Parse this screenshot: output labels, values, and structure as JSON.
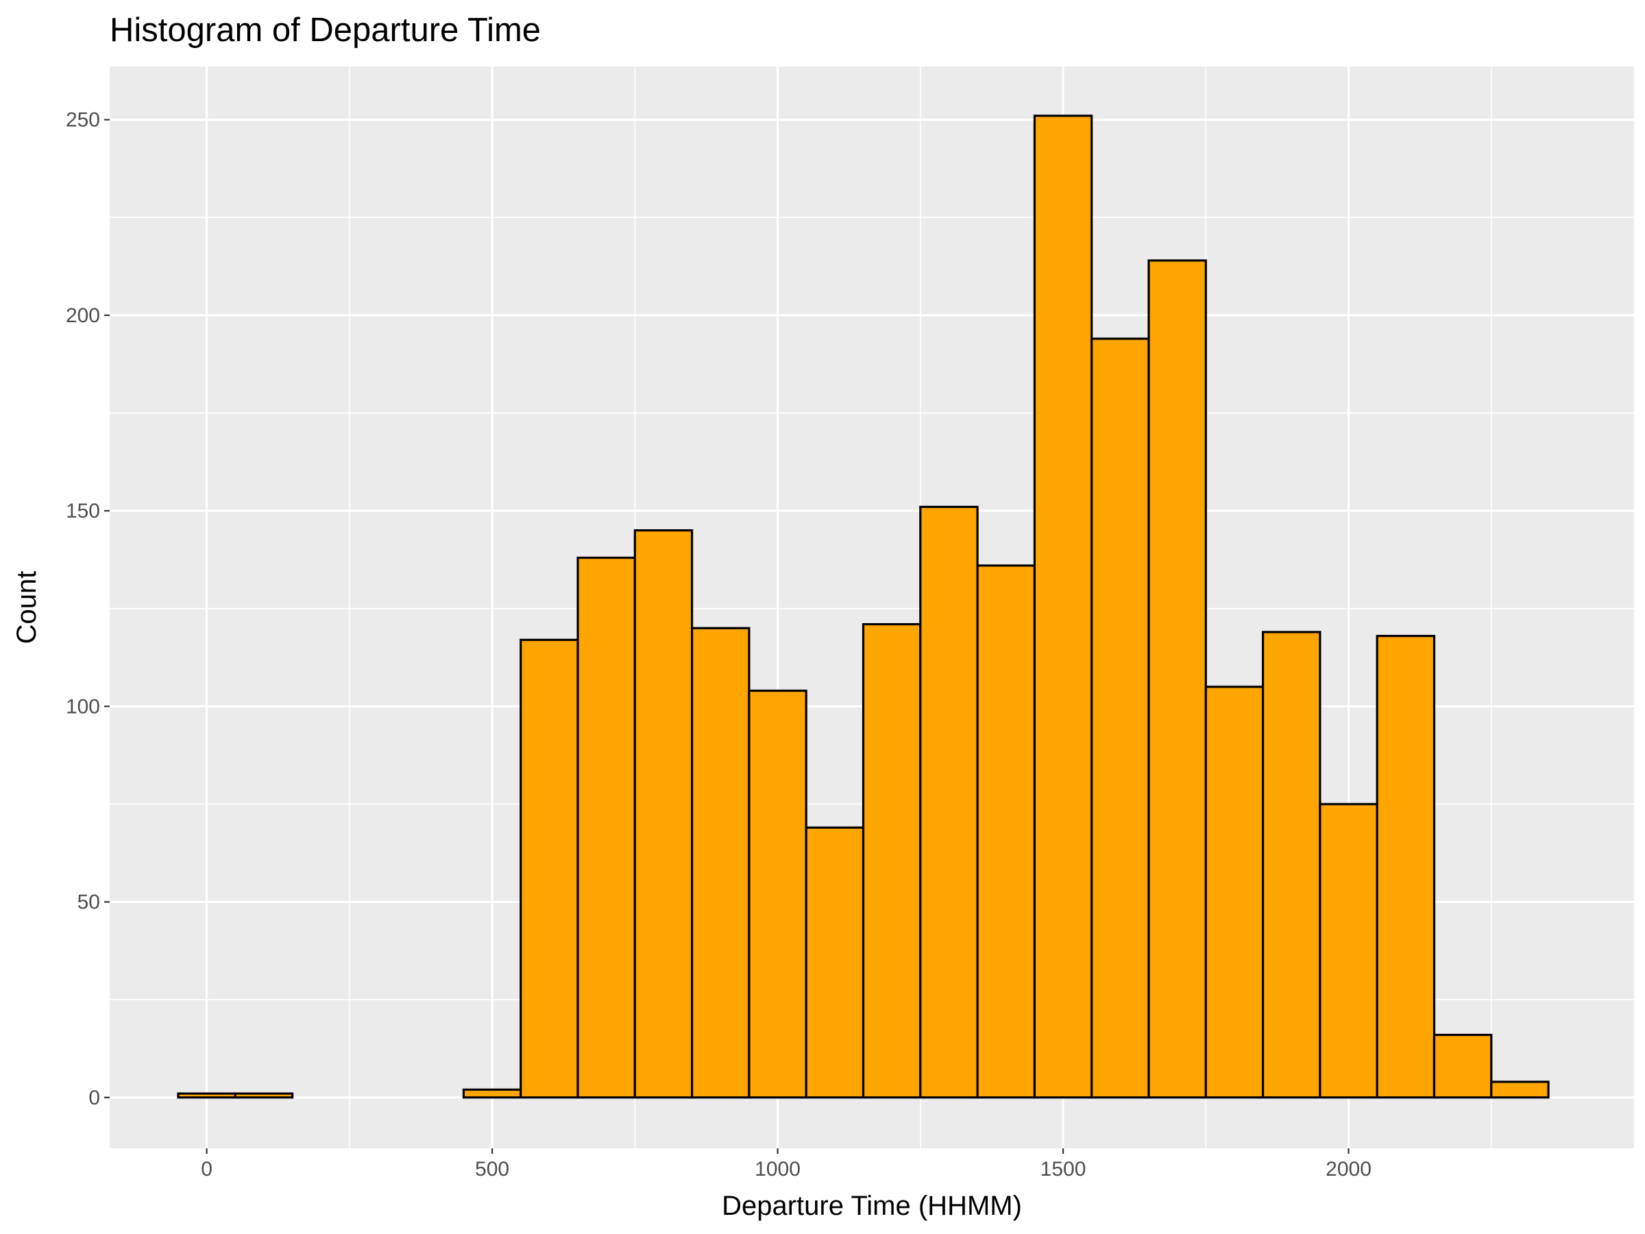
{
  "chart_data": {
    "type": "bar",
    "title": "Histogram of Departure Time",
    "xlabel": "Departure Time (HHMM)",
    "ylabel": "Count",
    "bin_width": 100,
    "x": [
      0,
      100,
      200,
      300,
      400,
      500,
      600,
      700,
      800,
      900,
      1000,
      1100,
      1200,
      1300,
      1400,
      1500,
      1600,
      1700,
      1800,
      1900,
      2000,
      2100,
      2200,
      2300
    ],
    "values": [
      1,
      1,
      0,
      0,
      0,
      2,
      117,
      138,
      145,
      120,
      104,
      69,
      121,
      151,
      136,
      251,
      194,
      214,
      105,
      119,
      75,
      118,
      16,
      4
    ],
    "xlim": [
      -170,
      2500
    ],
    "ylim": [
      -13,
      263.6
    ],
    "x_ticks": [
      0,
      500,
      1000,
      1500,
      2000
    ],
    "x_tick_labels": [
      "0",
      "500",
      "1000",
      "1500",
      "2000"
    ],
    "y_ticks": [
      0,
      50,
      100,
      150,
      200,
      250
    ],
    "y_tick_labels": [
      "0",
      "50",
      "100",
      "150",
      "200",
      "250"
    ],
    "grid": true,
    "colors": {
      "bar_fill": "#FFA500",
      "bar_stroke": "#000000",
      "panel_background": "#EBEBEB",
      "grid": "#FFFFFF"
    }
  }
}
